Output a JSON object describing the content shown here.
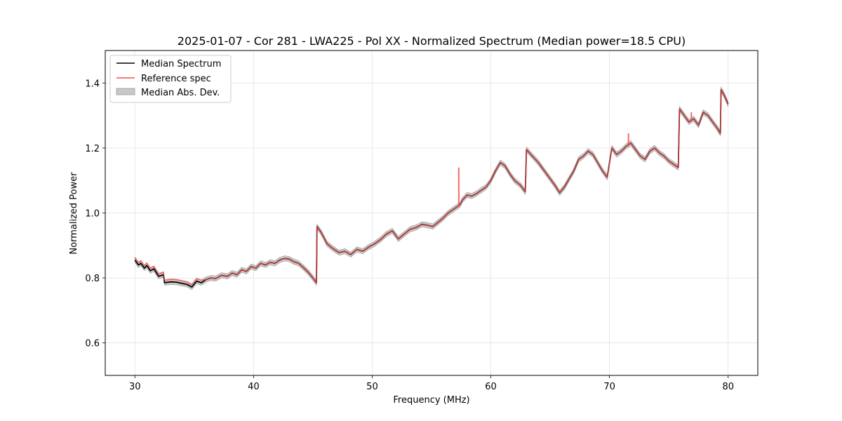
{
  "chart_data": {
    "type": "line",
    "title": "2025-01-07 - Cor 281 - LWA225 - Pol XX - Normalized Spectrum (Median power=18.5 CPU)",
    "xlabel": "Frequency (MHz)",
    "ylabel": "Normalized Power",
    "xlim": [
      27.5,
      82.5
    ],
    "ylim": [
      0.5,
      1.5
    ],
    "xticks": [
      30,
      40,
      50,
      60,
      70,
      80
    ],
    "yticks": [
      0.6,
      0.8,
      1.0,
      1.2,
      1.4
    ],
    "xtick_labels": [
      "30",
      "40",
      "50",
      "60",
      "70",
      "80"
    ],
    "ytick_labels": [
      "0.6",
      "0.8",
      "1.0",
      "1.2",
      "1.4"
    ],
    "grid": true,
    "legend_position": "top-left",
    "legend": [
      "Median Spectrum",
      "Reference spec",
      "Median Abs. Dev."
    ],
    "colors": {
      "median": "#000000",
      "reference": "#f05050",
      "mad_fill": "#c8c8c8",
      "mad_edge": "#999999"
    },
    "mad_halfwidth": 0.008,
    "series": [
      {
        "name": "Median Spectrum",
        "x": [
          30.0,
          30.3,
          30.5,
          30.8,
          31.0,
          31.3,
          31.6,
          32.0,
          32.4,
          32.5,
          33.0,
          33.5,
          34.0,
          34.4,
          34.8,
          35.2,
          35.6,
          36.0,
          36.4,
          36.8,
          37.3,
          37.8,
          38.2,
          38.6,
          39.0,
          39.4,
          39.8,
          40.2,
          40.6,
          41.0,
          41.4,
          41.8,
          42.2,
          42.6,
          43.0,
          43.4,
          43.8,
          44.2,
          44.6,
          45.0,
          45.3,
          45.35,
          45.7,
          46.2,
          46.7,
          47.2,
          47.7,
          48.2,
          48.7,
          49.2,
          49.7,
          50.2,
          50.7,
          51.2,
          51.7,
          52.2,
          52.7,
          53.2,
          53.7,
          54.2,
          54.7,
          55.1,
          55.5,
          56.0,
          56.4,
          56.8,
          57.2,
          57.4,
          57.6,
          58.0,
          58.4,
          58.8,
          59.2,
          59.6,
          60.0,
          60.4,
          60.8,
          61.2,
          61.6,
          62.0,
          62.5,
          62.9,
          63.0,
          63.5,
          64.0,
          64.5,
          65.0,
          65.4,
          65.8,
          66.2,
          66.6,
          67.0,
          67.4,
          67.8,
          68.2,
          68.6,
          69.0,
          69.4,
          69.8,
          70.2,
          70.6,
          71.0,
          71.4,
          71.8,
          72.2,
          72.6,
          73.0,
          73.4,
          73.8,
          74.2,
          74.6,
          75.0,
          75.4,
          75.8,
          75.9,
          76.3,
          76.7,
          77.1,
          77.5,
          77.9,
          78.3,
          78.7,
          79.1,
          79.35,
          79.4,
          79.7,
          80.0
        ],
        "y": [
          0.855,
          0.84,
          0.845,
          0.83,
          0.838,
          0.822,
          0.828,
          0.805,
          0.81,
          0.785,
          0.788,
          0.787,
          0.783,
          0.78,
          0.772,
          0.79,
          0.785,
          0.795,
          0.8,
          0.798,
          0.808,
          0.805,
          0.815,
          0.81,
          0.825,
          0.82,
          0.835,
          0.83,
          0.845,
          0.84,
          0.848,
          0.845,
          0.855,
          0.86,
          0.858,
          0.85,
          0.845,
          0.832,
          0.818,
          0.8,
          0.785,
          0.958,
          0.94,
          0.905,
          0.89,
          0.878,
          0.882,
          0.872,
          0.888,
          0.882,
          0.895,
          0.905,
          0.918,
          0.935,
          0.945,
          0.92,
          0.935,
          0.95,
          0.955,
          0.965,
          0.962,
          0.958,
          0.97,
          0.985,
          1.0,
          1.01,
          1.02,
          1.025,
          1.04,
          1.055,
          1.052,
          1.06,
          1.07,
          1.08,
          1.1,
          1.13,
          1.155,
          1.145,
          1.12,
          1.1,
          1.085,
          1.065,
          1.195,
          1.175,
          1.155,
          1.13,
          1.105,
          1.085,
          1.062,
          1.08,
          1.105,
          1.13,
          1.165,
          1.175,
          1.19,
          1.18,
          1.155,
          1.13,
          1.11,
          1.2,
          1.18,
          1.19,
          1.205,
          1.215,
          1.195,
          1.175,
          1.165,
          1.19,
          1.2,
          1.185,
          1.175,
          1.16,
          1.15,
          1.14,
          1.32,
          1.3,
          1.28,
          1.29,
          1.27,
          1.31,
          1.3,
          1.28,
          1.26,
          1.245,
          1.38,
          1.36,
          1.335
        ]
      },
      {
        "name": "Reference spec",
        "spikes": [
          {
            "x": 57.3,
            "y": 1.14
          },
          {
            "x": 71.6,
            "y": 1.245
          },
          {
            "x": 76.9,
            "y": 1.31
          }
        ]
      }
    ]
  }
}
